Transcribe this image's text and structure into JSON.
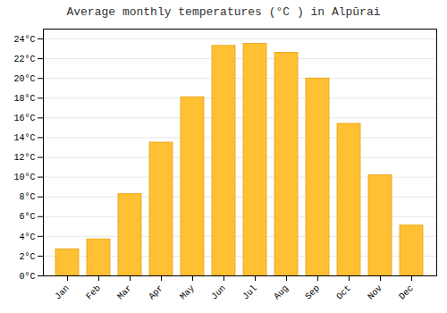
{
  "chart_data": {
    "type": "bar",
    "title": "Average monthly temperatures (°C ) in Alpūrai",
    "categories": [
      "Jan",
      "Feb",
      "Mar",
      "Apr",
      "May",
      "Jun",
      "Jul",
      "Aug",
      "Sep",
      "Oct",
      "Nov",
      "Dec"
    ],
    "values": [
      2.7,
      3.7,
      8.3,
      13.5,
      18.1,
      23.3,
      23.5,
      22.6,
      20.0,
      15.4,
      10.2,
      5.1
    ],
    "color": "#FFC033",
    "ylim": [
      0,
      25
    ],
    "yticks": [
      {
        "value": 0,
        "label": "0°C"
      },
      {
        "value": 2,
        "label": "2°C"
      },
      {
        "value": 4,
        "label": "4°C"
      },
      {
        "value": 6,
        "label": "6°C"
      },
      {
        "value": 8,
        "label": "8°C"
      },
      {
        "value": 10,
        "label": "10°C"
      },
      {
        "value": 12,
        "label": "12°C"
      },
      {
        "value": 14,
        "label": "14°C"
      },
      {
        "value": 16,
        "label": "16°C"
      },
      {
        "value": 18,
        "label": "18°C"
      },
      {
        "value": 20,
        "label": "20°C"
      },
      {
        "value": 22,
        "label": "22°C"
      },
      {
        "value": 24,
        "label": "24°C"
      }
    ],
    "grid": true
  }
}
